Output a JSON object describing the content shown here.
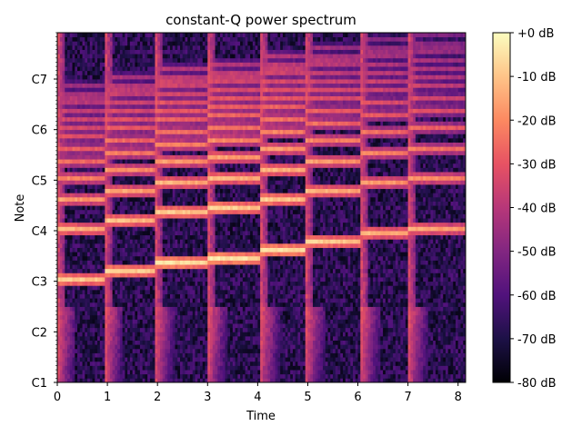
{
  "chart_data": {
    "type": "heatmap",
    "title": "constant-Q power spectrum",
    "xlabel": "Time",
    "ylabel": "Note",
    "xlim": [
      0,
      8.15
    ],
    "ylim_midi": [
      24,
      107
    ],
    "x_ticks": [
      {
        "value": 0,
        "label": "0"
      },
      {
        "value": 1,
        "label": "1"
      },
      {
        "value": 2,
        "label": "2"
      },
      {
        "value": 3,
        "label": "3"
      },
      {
        "value": 4,
        "label": "4"
      },
      {
        "value": 5,
        "label": "5"
      },
      {
        "value": 6,
        "label": "6"
      },
      {
        "value": 7,
        "label": "7"
      },
      {
        "value": 8,
        "label": "8"
      }
    ],
    "y_ticks": [
      {
        "midi": 24,
        "label": "C1"
      },
      {
        "midi": 36,
        "label": "C2"
      },
      {
        "midi": 48,
        "label": "C3"
      },
      {
        "midi": 60,
        "label": "C4"
      },
      {
        "midi": 72,
        "label": "C5"
      },
      {
        "midi": 84,
        "label": "C6"
      },
      {
        "midi": 96,
        "label": "C7"
      }
    ],
    "colorbar": {
      "min_db": -80,
      "max_db": 0,
      "colormap": "magma",
      "ticks": [
        {
          "value": 0,
          "label": "+0 dB"
        },
        {
          "value": -10,
          "label": "-10 dB"
        },
        {
          "value": -20,
          "label": "-20 dB"
        },
        {
          "value": -30,
          "label": "-30 dB"
        },
        {
          "value": -40,
          "label": "-40 dB"
        },
        {
          "value": -50,
          "label": "-50 dB"
        },
        {
          "value": -60,
          "label": "-60 dB"
        },
        {
          "value": -70,
          "label": "-70 dB"
        },
        {
          "value": -80,
          "label": "-80 dB"
        }
      ]
    },
    "notes": [
      {
        "onset": 0.0,
        "offset": 0.95,
        "fundamental_midi": 48,
        "fundamental_db": -8
      },
      {
        "onset": 0.95,
        "offset": 1.95,
        "fundamental_midi": 50,
        "fundamental_db": -6
      },
      {
        "onset": 1.95,
        "offset": 3.0,
        "fundamental_midi": 52,
        "fundamental_db": -4
      },
      {
        "onset": 3.0,
        "offset": 4.05,
        "fundamental_midi": 53,
        "fundamental_db": -3
      },
      {
        "onset": 4.05,
        "offset": 4.95,
        "fundamental_midi": 55,
        "fundamental_db": -4
      },
      {
        "onset": 4.95,
        "offset": 6.05,
        "fundamental_midi": 57,
        "fundamental_db": -8
      },
      {
        "onset": 6.05,
        "offset": 7.0,
        "fundamental_midi": 59,
        "fundamental_db": -12
      },
      {
        "onset": 7.0,
        "offset": 8.15,
        "fundamental_midi": 60,
        "fundamental_db": -14
      }
    ],
    "noise_floor_db": -68
  }
}
